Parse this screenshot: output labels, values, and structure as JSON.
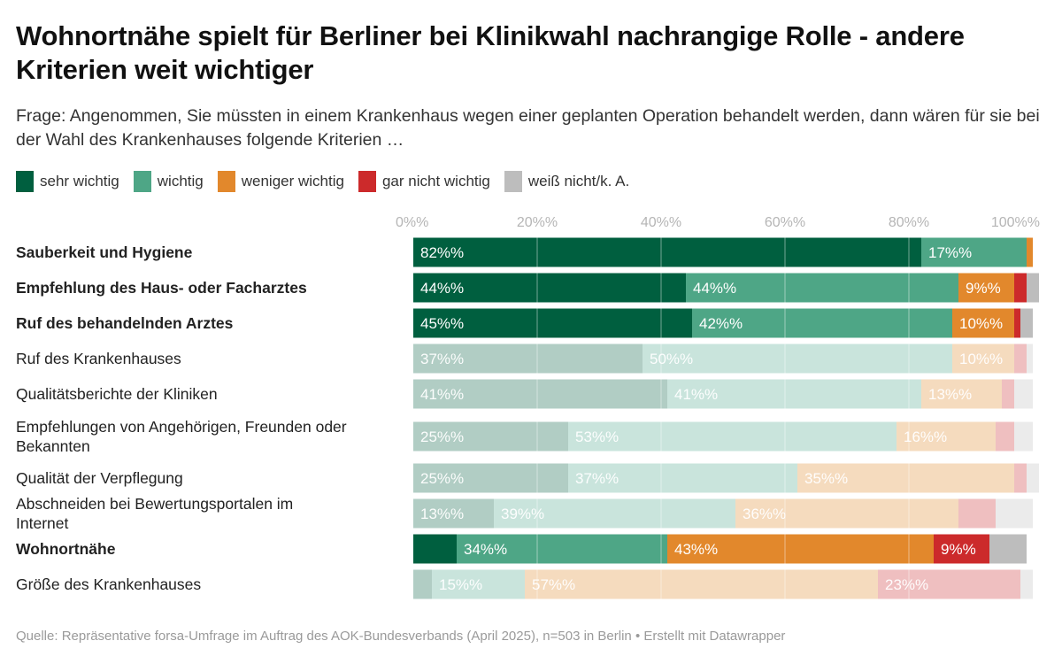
{
  "header": {
    "title": "Wohnortnähe spielt für Berliner bei Klinikwahl nachrangige Rolle - andere Kriterien weit wichtiger",
    "subtitle": "Frage: Angenommen, Sie müssten in einem Krankenhaus wegen einer geplanten Operation behandelt werden, dann wären für sie bei der Wahl des Krankenhauses folgende Kriterien …"
  },
  "footer": "Quelle: Repräsentative forsa-Umfrage im Auftrag des AOK-Bundesverbands (April 2025), n=503 in Berlin • Erstellt mit Datawrapper",
  "chart_data": {
    "type": "bar",
    "orientation": "horizontal-stacked",
    "title": "Wohnortnähe spielt für Berliner bei Klinikwahl nachrangige Rolle - andere Kriterien weit wichtiger",
    "xlabel": "",
    "ylabel": "",
    "xlim": [
      0,
      100
    ],
    "x_ticks": [
      "0%%",
      "20%%",
      "40%%",
      "60%%",
      "80%%",
      "100%%"
    ],
    "x_tick_values": [
      0,
      20,
      40,
      60,
      80,
      100
    ],
    "grid": true,
    "legend_position": "top-left",
    "value_suffix": "%%",
    "series": [
      {
        "name": "sehr wichtig",
        "color": "#005f3f",
        "faded_color": "#b1cdc4"
      },
      {
        "name": "wichtig",
        "color": "#4ea686",
        "faded_color": "#c9e4dc"
      },
      {
        "name": "weniger wichtig",
        "color": "#e2882c",
        "faded_color": "#f5dbbe"
      },
      {
        "name": "gar nicht wichtig",
        "color": "#cc2a2b",
        "faded_color": "#efbfc0"
      },
      {
        "name": "weiß nicht/k. A.",
        "color": "#bdbdbd",
        "faded_color": "#ebebeb"
      }
    ],
    "categories": [
      {
        "label": "Sauberkeit und Hygiene",
        "highlight": true,
        "values": [
          82,
          17,
          1,
          0,
          0
        ],
        "labels": [
          "82%%",
          "17%%",
          "",
          "",
          ""
        ]
      },
      {
        "label": "Empfehlung des Haus- oder Facharztes",
        "highlight": true,
        "values": [
          44,
          44,
          9,
          2,
          2
        ],
        "labels": [
          "44%%",
          "44%%",
          "9%%",
          "",
          ""
        ]
      },
      {
        "label": "Ruf des behandelnden Arztes",
        "highlight": true,
        "values": [
          45,
          42,
          10,
          1,
          2
        ],
        "labels": [
          "45%%",
          "42%%",
          "10%%",
          "",
          ""
        ]
      },
      {
        "label": "Ruf des Krankenhauses",
        "highlight": false,
        "values": [
          37,
          50,
          10,
          2,
          1
        ],
        "labels": [
          "37%%",
          "50%%",
          "10%%",
          "",
          ""
        ]
      },
      {
        "label": "Qualitätsberichte der Kliniken",
        "highlight": false,
        "values": [
          41,
          41,
          13,
          2,
          3
        ],
        "labels": [
          "41%%",
          "41%%",
          "13%%",
          "",
          ""
        ]
      },
      {
        "label": "Empfehlungen von Angehörigen, Freunden oder Bekannten",
        "highlight": false,
        "values": [
          25,
          53,
          16,
          3,
          3
        ],
        "labels": [
          "25%%",
          "53%%",
          "16%%",
          "",
          ""
        ]
      },
      {
        "label": "Qualität der Verpflegung",
        "highlight": false,
        "values": [
          25,
          37,
          35,
          2,
          2
        ],
        "labels": [
          "25%%",
          "37%%",
          "35%%",
          "",
          ""
        ]
      },
      {
        "label": "Abschneiden bei Bewertungsportalen im Internet",
        "highlight": false,
        "values": [
          13,
          39,
          36,
          6,
          6
        ],
        "labels": [
          "13%%",
          "39%%",
          "36%%",
          "",
          ""
        ]
      },
      {
        "label": "Wohnortnähe",
        "highlight": true,
        "values": [
          7,
          34,
          43,
          9,
          6
        ],
        "labels": [
          "",
          "34%%",
          "43%%",
          "9%%",
          ""
        ]
      },
      {
        "label": "Größe des Krankenhauses",
        "highlight": false,
        "values": [
          3,
          15,
          57,
          23,
          2
        ],
        "labels": [
          "",
          "15%%",
          "57%%",
          "23%%",
          ""
        ]
      }
    ]
  }
}
